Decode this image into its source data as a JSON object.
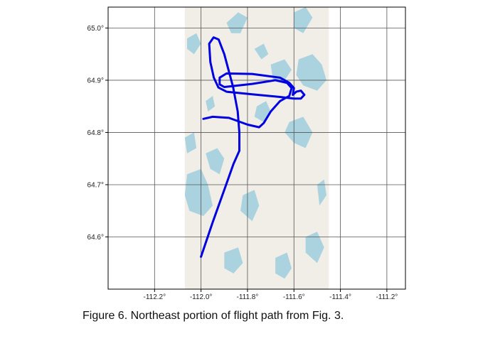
{
  "figure": {
    "caption": "Figure 6. Northeast portion of flight path from Fig. 3."
  },
  "map": {
    "colors": {
      "land": "#f1eee8",
      "water": "#aad3df",
      "track": "#0000e0",
      "grid": "#555555",
      "frame": "#000000"
    },
    "x_ticks": [
      {
        "value": -112.2,
        "label": "-112.2°"
      },
      {
        "value": -112.0,
        "label": "-112.0°"
      },
      {
        "value": -111.8,
        "label": "-111.8°"
      },
      {
        "value": -111.6,
        "label": "-111.6°"
      },
      {
        "value": -111.4,
        "label": "-111.4°"
      },
      {
        "value": -111.2,
        "label": "-111.2°"
      }
    ],
    "y_ticks": [
      {
        "value": 65.0,
        "label": "65.0°"
      },
      {
        "value": 64.9,
        "label": "64.9°"
      },
      {
        "value": 64.8,
        "label": "64.8°"
      },
      {
        "value": 64.7,
        "label": "64.7°"
      },
      {
        "value": 64.6,
        "label": "64.6°"
      }
    ],
    "lon_range": [
      -112.4,
      -111.12
    ],
    "lat_range": [
      64.5,
      65.04
    ],
    "basemap_lon_extent": [
      -112.07,
      -111.45
    ],
    "flight_track": [
      [
        -112.0,
        64.562
      ],
      [
        -111.95,
        64.628
      ],
      [
        -111.9,
        64.69
      ],
      [
        -111.86,
        64.74
      ],
      [
        -111.835,
        64.765
      ],
      [
        -111.835,
        64.8
      ],
      [
        -111.842,
        64.84
      ],
      [
        -111.862,
        64.887
      ],
      [
        -111.9,
        64.95
      ],
      [
        -111.924,
        64.978
      ],
      [
        -111.946,
        64.982
      ],
      [
        -111.965,
        64.97
      ],
      [
        -111.96,
        64.935
      ],
      [
        -111.945,
        64.905
      ],
      [
        -111.925,
        64.886
      ],
      [
        -111.89,
        64.878
      ],
      [
        -111.78,
        64.873
      ],
      [
        -111.66,
        64.868
      ],
      [
        -111.6,
        64.865
      ],
      [
        -111.57,
        64.865
      ],
      [
        -111.555,
        64.872
      ],
      [
        -111.57,
        64.88
      ],
      [
        -111.59,
        64.878
      ],
      [
        -111.605,
        64.872
      ],
      [
        -111.6,
        64.885
      ],
      [
        -111.62,
        64.895
      ],
      [
        -111.66,
        64.905
      ],
      [
        -111.78,
        64.912
      ],
      [
        -111.89,
        64.913
      ],
      [
        -111.92,
        64.905
      ],
      [
        -111.92,
        64.892
      ],
      [
        -111.9,
        64.887
      ],
      [
        -111.78,
        64.893
      ],
      [
        -111.68,
        64.9
      ],
      [
        -111.63,
        64.895
      ],
      [
        -111.61,
        64.885
      ],
      [
        -111.62,
        64.87
      ],
      [
        -111.66,
        64.86
      ],
      [
        -111.7,
        64.84
      ],
      [
        -111.73,
        64.818
      ],
      [
        -111.75,
        64.81
      ],
      [
        -111.8,
        64.815
      ],
      [
        -111.88,
        64.828
      ],
      [
        -111.95,
        64.83
      ],
      [
        -111.99,
        64.826
      ]
    ],
    "lakes": [
      [
        [
          -112.06,
          64.72
        ],
        [
          -112.0,
          64.73
        ],
        [
          -111.97,
          64.7
        ],
        [
          -111.95,
          64.66
        ],
        [
          -111.99,
          64.64
        ],
        [
          -112.05,
          64.65
        ],
        [
          -112.07,
          64.68
        ]
      ],
      [
        [
          -111.98,
          64.76
        ],
        [
          -111.93,
          64.77
        ],
        [
          -111.9,
          64.75
        ],
        [
          -111.92,
          64.72
        ],
        [
          -111.96,
          64.73
        ]
      ],
      [
        [
          -111.82,
          64.68
        ],
        [
          -111.77,
          64.69
        ],
        [
          -111.75,
          64.66
        ],
        [
          -111.78,
          64.63
        ],
        [
          -111.83,
          64.65
        ]
      ],
      [
        [
          -111.62,
          64.82
        ],
        [
          -111.56,
          64.83
        ],
        [
          -111.52,
          64.8
        ],
        [
          -111.55,
          64.77
        ],
        [
          -111.6,
          64.78
        ],
        [
          -111.64,
          64.8
        ]
      ],
      [
        [
          -111.76,
          64.85
        ],
        [
          -111.72,
          64.86
        ],
        [
          -111.7,
          64.84
        ],
        [
          -111.73,
          64.82
        ],
        [
          -111.77,
          64.83
        ]
      ],
      [
        [
          -111.7,
          64.93
        ],
        [
          -111.64,
          64.94
        ],
        [
          -111.61,
          64.92
        ],
        [
          -111.64,
          64.9
        ],
        [
          -111.69,
          64.9
        ]
      ],
      [
        [
          -111.58,
          64.94
        ],
        [
          -111.52,
          64.95
        ],
        [
          -111.48,
          64.93
        ],
        [
          -111.46,
          64.9
        ],
        [
          -111.5,
          64.88
        ],
        [
          -111.56,
          64.89
        ],
        [
          -111.59,
          64.91
        ]
      ],
      [
        [
          -111.89,
          65.01
        ],
        [
          -111.84,
          65.03
        ],
        [
          -111.8,
          65.02
        ],
        [
          -111.83,
          64.99
        ],
        [
          -111.87,
          64.99
        ]
      ],
      [
        [
          -111.6,
          65.03
        ],
        [
          -111.55,
          65.04
        ],
        [
          -111.52,
          65.02
        ],
        [
          -111.56,
          64.99
        ],
        [
          -111.6,
          65.0
        ]
      ],
      [
        [
          -112.06,
          64.98
        ],
        [
          -112.02,
          64.99
        ],
        [
          -112.0,
          64.97
        ],
        [
          -112.03,
          64.95
        ],
        [
          -112.06,
          64.96
        ]
      ],
      [
        [
          -111.9,
          64.57
        ],
        [
          -111.84,
          64.58
        ],
        [
          -111.82,
          64.55
        ],
        [
          -111.86,
          64.53
        ],
        [
          -111.9,
          64.54
        ]
      ],
      [
        [
          -111.55,
          64.6
        ],
        [
          -111.5,
          64.61
        ],
        [
          -111.47,
          64.58
        ],
        [
          -111.5,
          64.55
        ],
        [
          -111.55,
          64.57
        ]
      ],
      [
        [
          -111.68,
          64.56
        ],
        [
          -111.63,
          64.57
        ],
        [
          -111.61,
          64.54
        ],
        [
          -111.64,
          64.52
        ],
        [
          -111.68,
          64.53
        ]
      ],
      [
        [
          -111.5,
          64.7
        ],
        [
          -111.47,
          64.71
        ],
        [
          -111.46,
          64.68
        ],
        [
          -111.49,
          64.66
        ]
      ],
      [
        [
          -112.07,
          64.79
        ],
        [
          -112.03,
          64.8
        ],
        [
          -112.02,
          64.77
        ],
        [
          -112.06,
          64.76
        ]
      ],
      [
        [
          -111.77,
          64.96
        ],
        [
          -111.73,
          64.97
        ],
        [
          -111.71,
          64.95
        ],
        [
          -111.74,
          64.94
        ]
      ],
      [
        [
          -111.98,
          64.86
        ],
        [
          -111.95,
          64.87
        ],
        [
          -111.94,
          64.85
        ],
        [
          -111.97,
          64.84
        ]
      ]
    ]
  }
}
